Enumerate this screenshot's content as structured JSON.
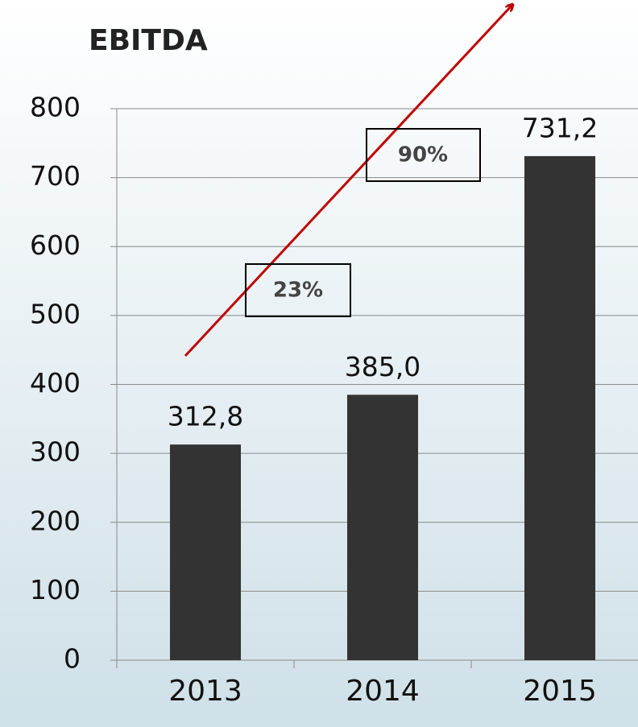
{
  "chart_data": {
    "type": "bar",
    "title": "EBITDA",
    "categories": [
      "2013",
      "2014",
      "2015"
    ],
    "values": [
      312.8,
      385.0,
      731.2
    ],
    "value_labels": [
      "312,8",
      "385,0",
      "731,2"
    ],
    "color": "#333333",
    "ylim": [
      0,
      800
    ],
    "yticks": [
      0,
      100,
      200,
      300,
      400,
      500,
      600,
      700,
      800
    ],
    "grid": true,
    "annotations": [
      "23%",
      "90%"
    ]
  }
}
